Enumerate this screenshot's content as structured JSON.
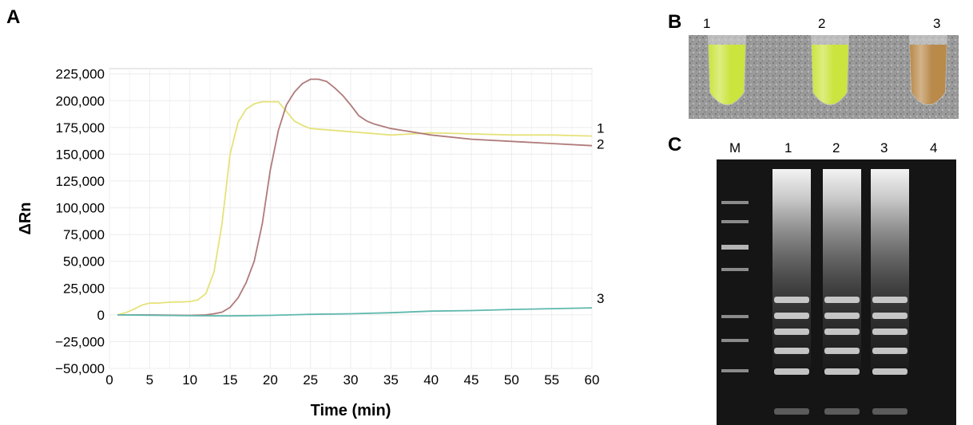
{
  "panels": {
    "a": "A",
    "b": "B",
    "c": "C"
  },
  "chart_data": {
    "type": "line",
    "xlabel": "Time (min)",
    "ylabel": "ΔRn",
    "xlim": [
      0,
      60
    ],
    "ylim": [
      -50000,
      230000
    ],
    "xticks": [
      0,
      5,
      10,
      15,
      20,
      25,
      30,
      35,
      40,
      45,
      50,
      55,
      60
    ],
    "yticks": [
      -50000,
      -25000,
      0,
      25000,
      50000,
      75000,
      100000,
      125000,
      150000,
      175000,
      200000,
      225000
    ],
    "ytick_labels": [
      "−50,000",
      "−25,000",
      "0",
      "25,000",
      "50,000",
      "75,000",
      "100,000",
      "125,000",
      "150,000",
      "175,000",
      "200,000",
      "225,000"
    ],
    "grid": true,
    "series": [
      {
        "name": "1",
        "color": "#e6e27a",
        "x": [
          1,
          2,
          3,
          4,
          5,
          6,
          7,
          8,
          9,
          10,
          11,
          12,
          13,
          14,
          15,
          16,
          17,
          18,
          19,
          20,
          21,
          22,
          23,
          24,
          25,
          30,
          35,
          40,
          45,
          50,
          55,
          60
        ],
        "y": [
          0,
          2000,
          5000,
          9000,
          11000,
          11000,
          11500,
          12000,
          12000,
          12500,
          14000,
          20000,
          40000,
          85000,
          150000,
          180000,
          192000,
          197000,
          199000,
          199000,
          199000,
          190000,
          181000,
          177000,
          174000,
          171000,
          168000,
          170000,
          169000,
          168000,
          168000,
          167000
        ]
      },
      {
        "name": "2",
        "color": "#b07a7a",
        "x": [
          1,
          5,
          10,
          12,
          13,
          14,
          15,
          16,
          17,
          18,
          19,
          20,
          21,
          22,
          23,
          24,
          25,
          26,
          27,
          28,
          29,
          30,
          31,
          32,
          33,
          35,
          40,
          45,
          50,
          55,
          60
        ],
        "y": [
          0,
          0,
          -500,
          0,
          1000,
          2500,
          7000,
          16000,
          30000,
          50000,
          85000,
          135000,
          172000,
          196000,
          208000,
          216000,
          220000,
          220000,
          218000,
          212000,
          205000,
          196000,
          186000,
          181000,
          178000,
          174000,
          168000,
          164000,
          162000,
          160000,
          158000
        ]
      },
      {
        "name": "3",
        "color": "#5fb8ad",
        "x": [
          1,
          5,
          10,
          15,
          20,
          25,
          30,
          35,
          40,
          45,
          50,
          55,
          60
        ],
        "y": [
          0,
          -300,
          -800,
          -1000,
          -500,
          500,
          1000,
          2000,
          3500,
          4000,
          5000,
          5800,
          6500
        ]
      }
    ]
  },
  "tube_photo": {
    "labels": [
      "1",
      "2",
      "3"
    ],
    "colors": [
      "#cbe43e",
      "#cbe43e",
      "#b98a4a"
    ]
  },
  "gel_photo": {
    "lanes": [
      "M",
      "1",
      "2",
      "3",
      "4"
    ]
  }
}
